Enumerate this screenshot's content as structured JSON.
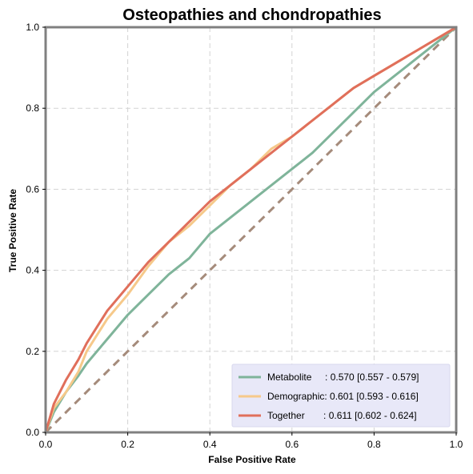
{
  "chart_data": {
    "type": "line",
    "title": "Osteopathies and chondropathies",
    "xlabel": "False Positive Rate",
    "ylabel": "True Positive Rate",
    "xlim": [
      0,
      1
    ],
    "ylim": [
      0,
      1
    ],
    "xticks": [
      "0.0",
      "0.2",
      "0.4",
      "0.6",
      "0.8",
      "1.0"
    ],
    "yticks": [
      "0.0",
      "0.2",
      "0.4",
      "0.6",
      "0.8",
      "1.0"
    ],
    "grid": true,
    "legend_position": "bottom-right",
    "reference_line": {
      "x": [
        0,
        1
      ],
      "y": [
        0,
        1
      ],
      "color": "#a58b7b",
      "style": "dashed"
    },
    "series": [
      {
        "name": "Metabolite",
        "legend_label": "Metabolite     : 0.570 [0.557 - 0.579]",
        "color": "#7fb49a",
        "x": [
          0,
          0.02,
          0.05,
          0.08,
          0.1,
          0.15,
          0.2,
          0.25,
          0.3,
          0.35,
          0.4,
          0.45,
          0.5,
          0.55,
          0.6,
          0.65,
          0.7,
          0.75,
          0.8,
          0.85,
          0.9,
          0.95,
          1.0
        ],
        "y": [
          0,
          0.05,
          0.1,
          0.14,
          0.17,
          0.23,
          0.29,
          0.34,
          0.39,
          0.43,
          0.49,
          0.53,
          0.57,
          0.61,
          0.65,
          0.69,
          0.74,
          0.79,
          0.84,
          0.88,
          0.92,
          0.96,
          1.0
        ]
      },
      {
        "name": "Demographic",
        "legend_label": "Demographic: 0.601 [0.593 - 0.616]",
        "color": "#f6c98a",
        "x": [
          0,
          0.02,
          0.05,
          0.08,
          0.1,
          0.15,
          0.2,
          0.25,
          0.3,
          0.35,
          0.4,
          0.45,
          0.5,
          0.55,
          0.6,
          0.65,
          0.7,
          0.75,
          0.8,
          0.85,
          0.9,
          0.95,
          1.0
        ],
        "y": [
          0,
          0.06,
          0.1,
          0.15,
          0.2,
          0.28,
          0.34,
          0.41,
          0.47,
          0.51,
          0.56,
          0.61,
          0.65,
          0.7,
          0.73,
          0.77,
          0.81,
          0.85,
          0.88,
          0.91,
          0.94,
          0.97,
          1.0
        ]
      },
      {
        "name": "Together",
        "legend_label": "Together       : 0.611 [0.602 - 0.624]",
        "color": "#e06f5b",
        "x": [
          0,
          0.02,
          0.05,
          0.08,
          0.1,
          0.15,
          0.2,
          0.25,
          0.3,
          0.35,
          0.4,
          0.45,
          0.5,
          0.55,
          0.6,
          0.65,
          0.7,
          0.75,
          0.8,
          0.85,
          0.9,
          0.95,
          1.0
        ],
        "y": [
          0,
          0.07,
          0.13,
          0.18,
          0.22,
          0.3,
          0.36,
          0.42,
          0.47,
          0.52,
          0.57,
          0.61,
          0.65,
          0.69,
          0.73,
          0.77,
          0.81,
          0.85,
          0.88,
          0.91,
          0.94,
          0.97,
          1.0
        ]
      }
    ],
    "colors": {
      "grid": "#d3d3d3",
      "frame": "#808080",
      "legend_bg": "#e8e8f8"
    }
  }
}
